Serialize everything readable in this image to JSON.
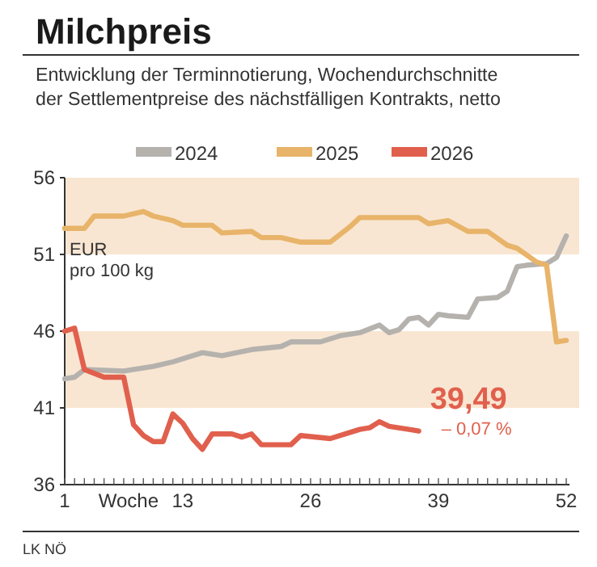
{
  "chart_data": {
    "type": "line",
    "title": "Milchpreis",
    "subtitle": "Entwicklung der Terminnotierung, Wochendurchschnitte\nder Settlementpreise des nächstfälligen Kontrakts, netto",
    "xlabel": "Woche",
    "ylabel": "EUR\npro 100 kg",
    "xlim": [
      1,
      52
    ],
    "ylim": [
      36,
      56
    ],
    "yticks": [
      36,
      41,
      46,
      51,
      56
    ],
    "xticks": [
      1,
      {
        "value": 2,
        "label": null
      },
      {
        "value": 3,
        "label": null
      },
      {
        "value": 4,
        "label": null
      },
      {
        "value": 5,
        "label": null
      },
      {
        "value": 6,
        "label": null
      },
      {
        "value": 7,
        "label": null
      },
      {
        "value": 8,
        "label": null
      },
      {
        "value": 9,
        "label": null
      },
      {
        "value": 10,
        "label": null
      },
      {
        "value": 11,
        "label": null
      },
      {
        "value": 12,
        "label": null
      },
      13,
      {
        "value": 14,
        "label": null
      },
      {
        "value": 15,
        "label": null
      },
      {
        "value": 16,
        "label": null
      },
      {
        "value": 17,
        "label": null
      },
      {
        "value": 18,
        "label": null
      },
      {
        "value": 19,
        "label": null
      },
      {
        "value": 20,
        "label": null
      },
      {
        "value": 21,
        "label": null
      },
      {
        "value": 22,
        "label": null
      },
      {
        "value": 23,
        "label": null
      },
      {
        "value": 24,
        "label": null
      },
      {
        "value": 25,
        "label": null
      },
      26,
      {
        "value": 27,
        "label": null
      },
      {
        "value": 28,
        "label": null
      },
      {
        "value": 29,
        "label": null
      },
      {
        "value": 30,
        "label": null
      },
      {
        "value": 31,
        "label": null
      },
      {
        "value": 32,
        "label": null
      },
      {
        "value": 33,
        "label": null
      },
      {
        "value": 34,
        "label": null
      },
      {
        "value": 35,
        "label": null
      },
      {
        "value": 36,
        "label": null
      },
      {
        "value": 37,
        "label": null
      },
      {
        "value": 38,
        "label": null
      },
      39,
      {
        "value": 40,
        "label": null
      },
      {
        "value": 41,
        "label": null
      },
      {
        "value": 42,
        "label": null
      },
      {
        "value": 43,
        "label": null
      },
      {
        "value": 44,
        "label": null
      },
      {
        "value": 45,
        "label": null
      },
      {
        "value": 46,
        "label": null
      },
      {
        "value": 47,
        "label": null
      },
      {
        "value": 48,
        "label": null
      },
      {
        "value": 49,
        "label": null
      },
      {
        "value": 50,
        "label": null
      },
      {
        "value": 51,
        "label": null
      },
      52
    ],
    "bands": [
      {
        "axis": "y",
        "from": 51,
        "to": 56,
        "color": "#f8e6d2"
      },
      {
        "axis": "y",
        "from": 41,
        "to": 46,
        "color": "#f8e6d2"
      }
    ],
    "series": [
      {
        "name": "2024",
        "color": "#b5b2ae",
        "x": [
          1,
          2,
          3,
          7,
          10,
          12,
          15,
          17,
          20,
          23,
          24,
          27,
          29,
          31,
          33,
          34,
          35,
          36,
          37,
          38,
          39,
          40,
          42,
          43,
          45,
          46,
          47,
          48,
          50,
          51,
          52
        ],
        "values": [
          42.9,
          43.0,
          43.5,
          43.4,
          43.7,
          44.0,
          44.6,
          44.4,
          44.8,
          45.0,
          45.3,
          45.3,
          45.7,
          45.9,
          46.4,
          45.9,
          46.1,
          46.8,
          46.9,
          46.4,
          47.1,
          47.0,
          46.9,
          48.1,
          48.2,
          48.6,
          50.2,
          50.3,
          50.4,
          50.8,
          52.2
        ]
      },
      {
        "name": "2025",
        "color": "#e8b46a",
        "x": [
          1,
          3,
          4,
          7,
          9,
          10,
          12,
          13,
          16,
          17,
          20,
          21,
          23,
          25,
          28,
          30,
          31,
          37,
          38,
          40,
          42,
          44,
          46,
          47,
          49,
          50,
          51,
          52
        ],
        "values": [
          52.7,
          52.7,
          53.5,
          53.5,
          53.8,
          53.5,
          53.2,
          52.9,
          52.9,
          52.4,
          52.5,
          52.1,
          52.1,
          51.8,
          51.8,
          52.8,
          53.4,
          53.4,
          53.0,
          53.2,
          52.5,
          52.5,
          51.6,
          51.4,
          50.5,
          50.3,
          45.3,
          45.4
        ]
      },
      {
        "name": "2026",
        "color": "#e0604d",
        "x": [
          1,
          2,
          3,
          5,
          7,
          8,
          9,
          10,
          11,
          12,
          13,
          14,
          15,
          16,
          18,
          19,
          20,
          21,
          24,
          25,
          28,
          31,
          32,
          33,
          34,
          36,
          37
        ],
        "values": [
          46.0,
          46.2,
          43.5,
          43.0,
          43.0,
          39.9,
          39.2,
          38.8,
          38.8,
          40.6,
          40.0,
          39.0,
          38.3,
          39.3,
          39.3,
          39.1,
          39.3,
          38.6,
          38.6,
          39.2,
          39.0,
          39.6,
          39.7,
          40.1,
          39.8,
          39.6,
          39.49
        ]
      }
    ],
    "legend": "top",
    "line_style": "solid",
    "marker": "none",
    "grid": false,
    "annotations": [
      {
        "text": "39,49",
        "x": 37,
        "y": 39.49
      },
      "– 0,07 %",
      "LK NÖ"
    ]
  }
}
